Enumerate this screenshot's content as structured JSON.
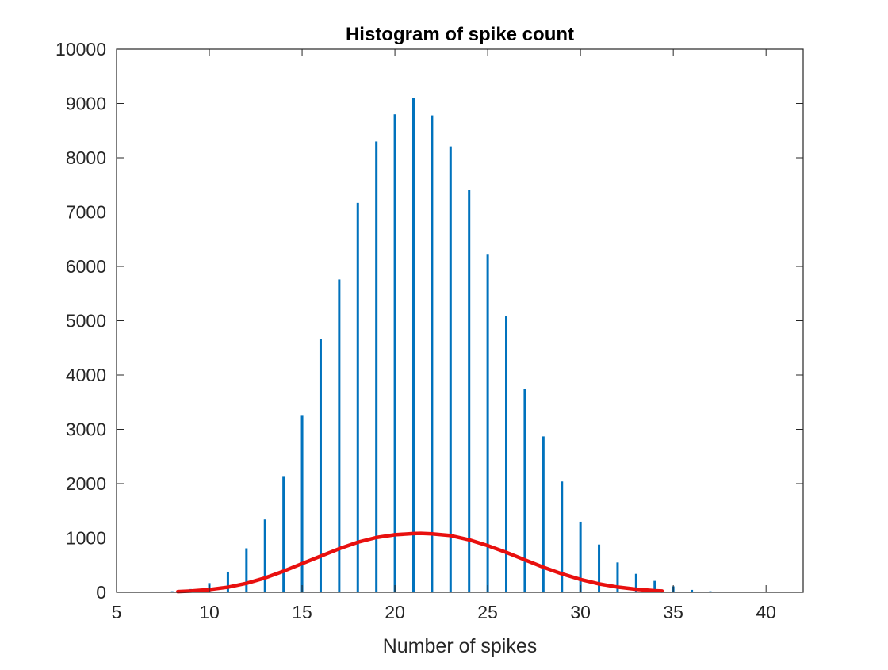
{
  "colors": {
    "bars": "#0072BD",
    "fit_curve": "#E8100F",
    "axes": "#262626",
    "background": "#ffffff"
  },
  "chart_data": {
    "type": "bar",
    "title": "Histogram of spike count",
    "xlabel": "Number of spikes",
    "ylabel": "",
    "xlim": [
      5,
      42
    ],
    "ylim": [
      0,
      10000
    ],
    "xticks": [
      5,
      10,
      15,
      20,
      25,
      30,
      35,
      40
    ],
    "yticks": [
      0,
      1000,
      2000,
      3000,
      4000,
      5000,
      6000,
      7000,
      8000,
      9000,
      10000
    ],
    "grid": false,
    "legend": "none",
    "series": [
      {
        "type": "bar",
        "x": [
          7,
          8,
          9,
          10,
          11,
          12,
          13,
          14,
          15,
          16,
          17,
          18,
          19,
          20,
          21,
          22,
          23,
          24,
          25,
          26,
          27,
          28,
          29,
          30,
          31,
          32,
          33,
          34,
          35,
          36,
          37,
          38
        ],
        "values": [
          5,
          20,
          60,
          170,
          380,
          810,
          1340,
          2140,
          3250,
          4670,
          5760,
          7170,
          8300,
          8800,
          9100,
          8780,
          8210,
          7410,
          6230,
          5080,
          3740,
          2870,
          2040,
          1300,
          880,
          550,
          340,
          210,
          110,
          45,
          20,
          8
        ]
      },
      {
        "type": "line",
        "x": [
          8.3,
          9,
          10,
          11,
          12,
          13,
          14,
          15,
          16,
          17,
          18,
          19,
          20,
          21,
          21.4,
          22,
          23,
          24,
          25,
          26,
          27,
          28,
          29,
          30,
          31,
          32,
          33,
          34,
          34.4
        ],
        "values": [
          12,
          24,
          50,
          94,
          165,
          264,
          389,
          528,
          666,
          802,
          922,
          1009,
          1060,
          1082,
          1085,
          1077,
          1045,
          966,
          860,
          735,
          598,
          462,
          340,
          236,
          155,
          96,
          56,
          30,
          24
        ]
      }
    ]
  }
}
